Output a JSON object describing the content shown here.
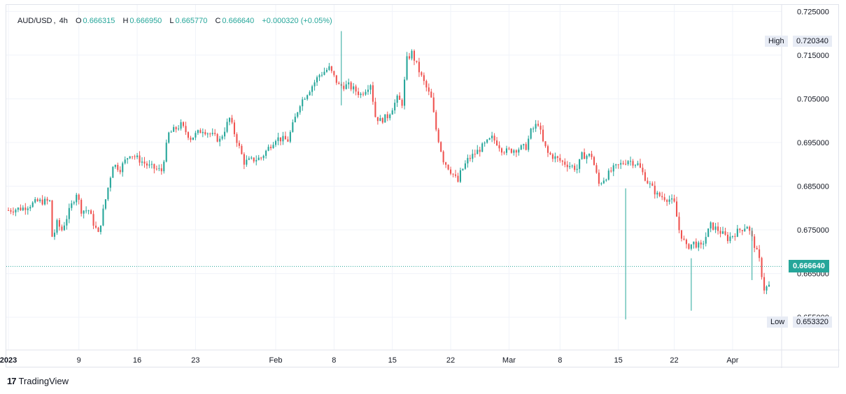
{
  "legend": {
    "symbol": "AUD/USD",
    "interval": "4h",
    "o_label": "O",
    "o": "0.666315",
    "h_label": "H",
    "h": "0.666950",
    "l_label": "L",
    "l": "0.665770",
    "c_label": "C",
    "c": "0.666640",
    "change": "+0.000320 (+0.05%)"
  },
  "markers": {
    "high_label": "High",
    "high_value": "0.720340",
    "low_label": "Low",
    "low_value": "0.653320",
    "last_value": "0.666640"
  },
  "footer": {
    "brand": "TradingView",
    "logo": "17"
  },
  "colors": {
    "up": "#26a69a",
    "down": "#ef5350",
    "grid": "#f0f3fa",
    "axis_text": "#131722",
    "tag_bg": "#e8ecf5",
    "last_bg": "#26a69a"
  },
  "chart_data": {
    "type": "candlestick",
    "title": "",
    "xlabel": "",
    "ylabel": "",
    "ylim": [
      0.6475,
      0.7265
    ],
    "y_ticks": [
      "0.725000",
      "0.715000",
      "0.705000",
      "0.695000",
      "0.685000",
      "0.675000",
      "0.665000",
      "0.655000"
    ],
    "x_ticks": [
      "2023",
      "9",
      "16",
      "23",
      "Feb",
      "8",
      "15",
      "22",
      "Mar",
      "8",
      "15",
      "22",
      "Apr"
    ],
    "x_tick_index": [
      0,
      29,
      53,
      77,
      110,
      134,
      158,
      182,
      206,
      227,
      251,
      274,
      298
    ],
    "n_bars": 314,
    "price_path": [
      [
        0,
        0.6795
      ],
      [
        6,
        0.68
      ],
      [
        12,
        0.6815
      ],
      [
        15,
        0.6815
      ],
      [
        17,
        0.6815
      ],
      [
        18,
        0.6735
      ],
      [
        19,
        0.6745
      ],
      [
        20,
        0.6765
      ],
      [
        22,
        0.675
      ],
      [
        28,
        0.6835
      ],
      [
        30,
        0.6795
      ],
      [
        33,
        0.6795
      ],
      [
        35,
        0.6765
      ],
      [
        37,
        0.674
      ],
      [
        40,
        0.682
      ],
      [
        43,
        0.69
      ],
      [
        46,
        0.689
      ],
      [
        50,
        0.6925
      ],
      [
        58,
        0.6895
      ],
      [
        63,
        0.6885
      ],
      [
        66,
        0.697
      ],
      [
        71,
        0.699
      ],
      [
        75,
        0.696
      ],
      [
        80,
        0.698
      ],
      [
        87,
        0.6955
      ],
      [
        91,
        0.7005
      ],
      [
        97,
        0.6905
      ],
      [
        104,
        0.6915
      ],
      [
        110,
        0.696
      ],
      [
        115,
        0.6955
      ],
      [
        120,
        0.704
      ],
      [
        125,
        0.708
      ],
      [
        128,
        0.7105
      ],
      [
        132,
        0.712
      ],
      [
        136,
        0.708
      ],
      [
        140,
        0.708
      ],
      [
        145,
        0.706
      ],
      [
        149,
        0.7085
      ],
      [
        151,
        0.701
      ],
      [
        153,
        0.7
      ],
      [
        156,
        0.701
      ],
      [
        160,
        0.705
      ],
      [
        162,
        0.704
      ],
      [
        164,
        0.714
      ],
      [
        166,
        0.7155
      ],
      [
        170,
        0.71
      ],
      [
        174,
        0.705
      ],
      [
        176,
        0.698
      ],
      [
        179,
        0.691
      ],
      [
        185,
        0.686
      ],
      [
        186,
        0.688
      ],
      [
        189,
        0.691
      ],
      [
        193,
        0.693
      ],
      [
        196,
        0.6945
      ],
      [
        199,
        0.696
      ],
      [
        201,
        0.695
      ],
      [
        203,
        0.6935
      ],
      [
        205,
        0.693
      ],
      [
        209,
        0.6935
      ],
      [
        213,
        0.694
      ],
      [
        215,
        0.6975
      ],
      [
        218,
        0.6995
      ],
      [
        220,
        0.695
      ],
      [
        222,
        0.6925
      ],
      [
        228,
        0.6905
      ],
      [
        234,
        0.689
      ],
      [
        236,
        0.692
      ],
      [
        240,
        0.692
      ],
      [
        243,
        0.6855
      ],
      [
        249,
        0.689
      ],
      [
        255,
        0.691
      ],
      [
        259,
        0.69
      ],
      [
        263,
        0.686
      ],
      [
        267,
        0.683
      ],
      [
        272,
        0.682
      ],
      [
        274,
        0.681
      ],
      [
        276,
        0.675
      ],
      [
        279,
        0.671
      ],
      [
        282,
        0.672
      ],
      [
        285,
        0.671
      ],
      [
        289,
        0.676
      ],
      [
        292,
        0.675
      ],
      [
        296,
        0.673
      ],
      [
        301,
        0.675
      ],
      [
        304,
        0.676
      ],
      [
        307,
        0.6715
      ],
      [
        309,
        0.668
      ],
      [
        311,
        0.6615
      ],
      [
        314,
        0.6625
      ]
    ],
    "note_x_mapping": "continuous bars; rendering maps bar index to axis"
  }
}
